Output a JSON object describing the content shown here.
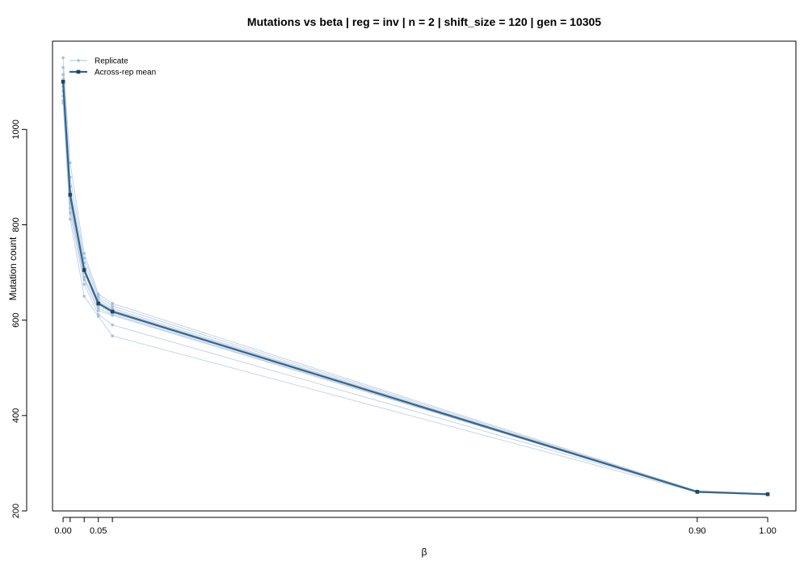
{
  "chart_data": {
    "type": "line",
    "title": "Mutations vs beta | reg = inv | n = 2 | shift_size = 120 | gen = 10305",
    "xlabel": "β",
    "ylabel": "Mutation count",
    "x": [
      0.0,
      0.01,
      0.03,
      0.05,
      0.07,
      0.9,
      1.0
    ],
    "xticks": [
      {
        "value": 0.0,
        "label": "0.00"
      },
      {
        "value": 0.01,
        "label": ""
      },
      {
        "value": 0.03,
        "label": ""
      },
      {
        "value": 0.05,
        "label": "0.05"
      },
      {
        "value": 0.07,
        "label": ""
      },
      {
        "value": 0.9,
        "label": "0.90"
      },
      {
        "value": 1.0,
        "label": "1.00"
      }
    ],
    "yticks": [
      200,
      400,
      600,
      800,
      1000
    ],
    "xlim": [
      -0.015,
      1.04
    ],
    "ylim": [
      200,
      1185
    ],
    "grid": false,
    "legend_position": "top-left",
    "colors": {
      "mean": "#33648f",
      "replicate": "#a7c0da",
      "mean_marker": "#1f4663"
    },
    "legend": [
      {
        "label": "Replicate",
        "kind": "replicate"
      },
      {
        "label": "Across-rep mean",
        "kind": "mean"
      }
    ],
    "series": [
      {
        "name": "Across-rep mean",
        "kind": "mean",
        "values": [
          1100,
          863,
          705,
          635,
          618,
          240,
          235
        ]
      },
      {
        "kind": "replicate",
        "values": [
          1150,
          930,
          740,
          655,
          635,
          242,
          236
        ]
      },
      {
        "kind": "replicate",
        "values": [
          1130,
          900,
          730,
          650,
          630,
          241,
          235
        ]
      },
      {
        "kind": "replicate",
        "values": [
          1115,
          880,
          720,
          645,
          625,
          240,
          234
        ]
      },
      {
        "kind": "replicate",
        "values": [
          1105,
          870,
          710,
          640,
          622,
          240,
          235
        ]
      },
      {
        "kind": "replicate",
        "values": [
          1098,
          860,
          705,
          638,
          620,
          239,
          234
        ]
      },
      {
        "kind": "replicate",
        "values": [
          1090,
          850,
          700,
          630,
          615,
          240,
          235
        ]
      },
      {
        "kind": "replicate",
        "values": [
          1080,
          845,
          690,
          625,
          612,
          239,
          234
        ]
      },
      {
        "kind": "replicate",
        "values": [
          1070,
          835,
          685,
          620,
          610,
          241,
          235
        ]
      },
      {
        "kind": "replicate",
        "values": [
          1060,
          825,
          675,
          612,
          590,
          240,
          234
        ]
      },
      {
        "kind": "replicate",
        "values": [
          1055,
          812,
          650,
          608,
          567,
          239,
          235
        ]
      }
    ]
  }
}
